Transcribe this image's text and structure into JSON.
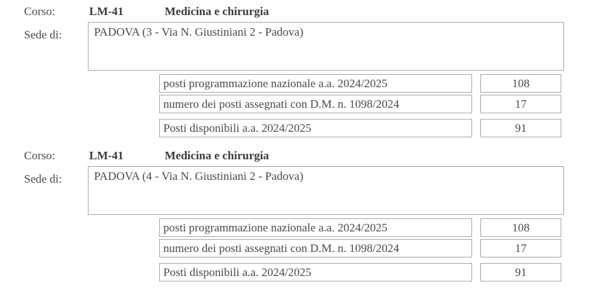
{
  "colors": {
    "background": "#ffffff",
    "box_border": "#a9a9a9",
    "body_text": "#4a4a4a",
    "bold_text": "#3c3c3c"
  },
  "sections": [
    {
      "corso_label": "Corso:",
      "course_code": "LM-41",
      "course_name": "Medicina e chirurgia",
      "sede_label": "Sede di:",
      "sede_value": "PADOVA (3 - Via N. Giustiniani 2 - Padova)",
      "rows": [
        {
          "label": "posti programmazione nazionale a.a. 2024/2025",
          "value": "108"
        },
        {
          "label": "numero dei posti assegnati con D.M. n. 1098/2024",
          "value": "17"
        },
        {
          "label": "Posti disponibili a.a. 2024/2025",
          "value": "91"
        }
      ]
    },
    {
      "corso_label": "Corso:",
      "course_code": "LM-41",
      "course_name": "Medicina e chirurgia",
      "sede_label": "Sede di:",
      "sede_value": "PADOVA (4 - Via N. Giustiniani 2 - Padova)",
      "rows": [
        {
          "label": "posti programmazione nazionale a.a. 2024/2025",
          "value": "108"
        },
        {
          "label": "numero dei posti assegnati con D.M. n. 1098/2024",
          "value": "17"
        },
        {
          "label": "Posti disponibili a.a. 2024/2025",
          "value": "91"
        }
      ]
    }
  ]
}
